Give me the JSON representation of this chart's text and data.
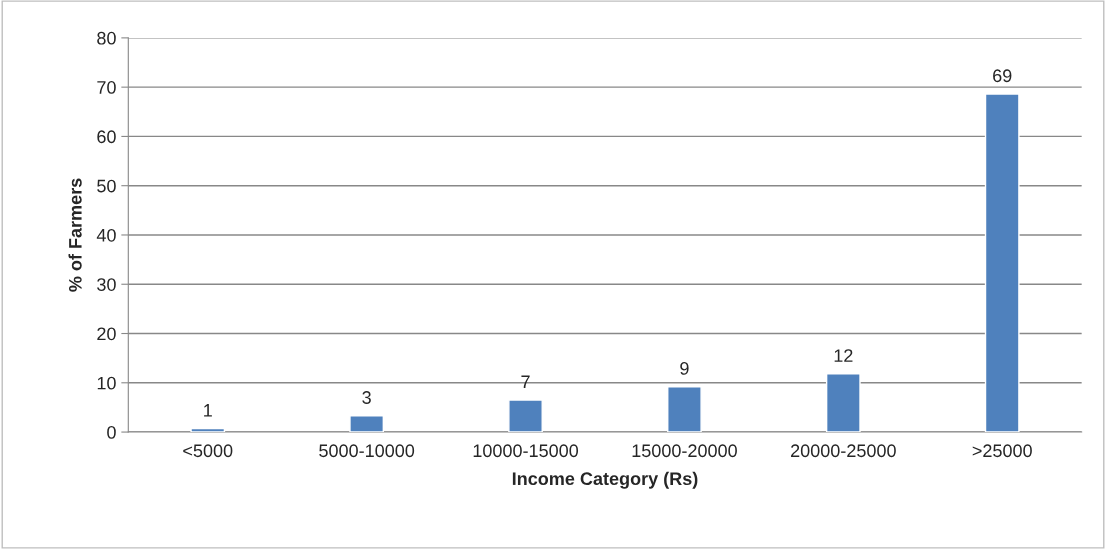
{
  "chart_data": {
    "type": "bar",
    "xlabel": "Income Category (Rs)",
    "ylabel": "% of Farmers",
    "categories": [
      "<5000",
      "5000-10000",
      "10000-15000",
      "15000-20000",
      "20000-25000",
      ">25000"
    ],
    "values": [
      0.7,
      3.3,
      6.5,
      9.2,
      11.8,
      68.6
    ],
    "value_labels": [
      "1",
      "3",
      "7",
      "9",
      "12",
      "69"
    ],
    "color": "#4f81bd",
    "ylim": [
      0,
      80
    ],
    "yticks": [
      0,
      10,
      20,
      30,
      40,
      50,
      60,
      70,
      80
    ],
    "grid": "y"
  }
}
